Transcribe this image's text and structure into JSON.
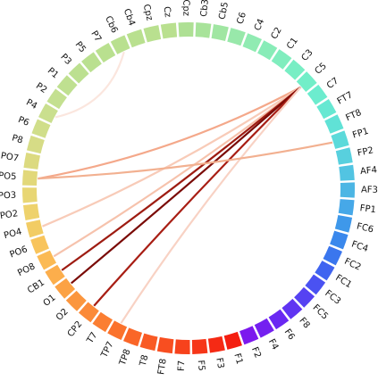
{
  "diagram": {
    "nodes": [
      "Cz",
      "Cpz",
      "Cb3",
      "Cb5",
      "C6",
      "C4",
      "C2",
      "C1",
      "C3",
      "C5",
      "C7",
      "FT7",
      "FT8",
      "FP1",
      "FP2",
      "AF4",
      "AF3",
      "FP1",
      "FC6",
      "FC4",
      "FC2",
      "FC1",
      "FC3",
      "FC5",
      "F8",
      "F6",
      "F4",
      "F2",
      "F1",
      "F3",
      "F5",
      "F7",
      "FT8",
      "T8",
      "TP8",
      "TP7",
      "T7",
      "CP2",
      "O2",
      "O1",
      "CB1",
      "PO8",
      "PO6",
      "PO4",
      "PO2",
      "PO3",
      "PO5",
      "PO7",
      "P8",
      "P6",
      "P4",
      "P2",
      "P1",
      "P3",
      "P5",
      "P7",
      "Cb6",
      "Cb4",
      "Cpz"
    ],
    "node_colors": [
      "#b9e08f",
      "#aee094",
      "#a8e39a",
      "#a0e6a2",
      "#98e8aa",
      "#90ebb2",
      "#88ecb8",
      "#80edbe",
      "#78eec4",
      "#72eec8",
      "#6cecce",
      "#66e8d2",
      "#60e2d6",
      "#5cdada",
      "#58d0de",
      "#52c4e2",
      "#4cb6e4",
      "#46a8e8",
      "#3e98ea",
      "#3a88ec",
      "#3a76ee",
      "#4064f0",
      "#4a52f2",
      "#5642f2",
      "#6034f2",
      "#6a28f2",
      "#7420f0",
      "#7c18ee",
      "#f41e10",
      "#f52a14",
      "#f63618",
      "#f7421c",
      "#f84e20",
      "#f95a24",
      "#fa6628",
      "#fb722c",
      "#fb7e32",
      "#fb8a38",
      "#fb963e",
      "#fca244",
      "#fcae4c",
      "#fbba54",
      "#f8c45c",
      "#f2cc64",
      "#eed26c",
      "#e8d674",
      "#e2d87a",
      "#dcda80",
      "#d6dc86",
      "#d0de8a",
      "#cadf8e",
      "#c4e090",
      "#bfe090",
      "#bce090",
      "#bae090",
      "#b9e08f",
      "#b9e08f",
      "#b9e08f",
      "#b9e08f"
    ],
    "links": [
      {
        "from": "C5",
        "to": "PO5",
        "color": "#f4a88a"
      },
      {
        "from": "C5",
        "to": "PO4",
        "color": "#f8cbb8"
      },
      {
        "from": "C5",
        "to": "PO8",
        "color": "#f6c2ac"
      },
      {
        "from": "C5",
        "to": "CB1",
        "color": "#9e1c12"
      },
      {
        "from": "C5",
        "to": "O1",
        "color": "#7a0a06"
      },
      {
        "from": "C5",
        "to": "CP2",
        "color": "#a81e14"
      },
      {
        "from": "C5",
        "to": "TP7",
        "color": "#f8d2c4"
      },
      {
        "from": "Cb6",
        "to": "P4",
        "color": "#fbe6de"
      },
      {
        "from": "FP1",
        "to": "PO5",
        "color": "#f2b090"
      }
    ]
  }
}
